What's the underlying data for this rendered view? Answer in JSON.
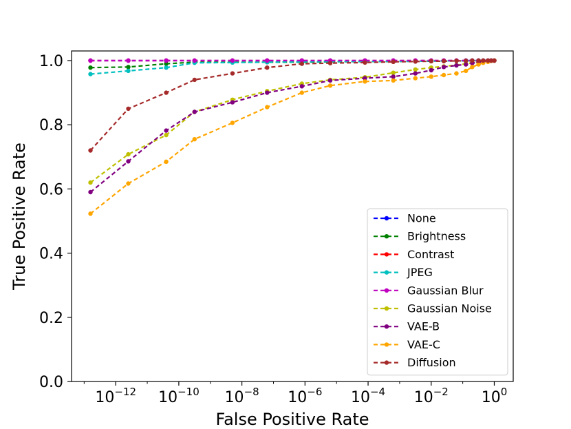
{
  "chart_data": {
    "type": "line",
    "title": "",
    "xlabel": "False Positive Rate",
    "ylabel": "True Positive Rate",
    "xscale": "log",
    "xlim_exp": [
      -13.4,
      0.6
    ],
    "ylim": [
      0.0,
      1.03
    ],
    "x_ticks": [
      {
        "base": "10",
        "exp": "−12",
        "value": -12
      },
      {
        "base": "10",
        "exp": "−10",
        "value": -10
      },
      {
        "base": "10",
        "exp": "−8",
        "value": -8
      },
      {
        "base": "10",
        "exp": "−6",
        "value": -6
      },
      {
        "base": "10",
        "exp": "−4",
        "value": -4
      },
      {
        "base": "10",
        "exp": "−2",
        "value": -2
      },
      {
        "base": "10",
        "exp": "0",
        "value": 0
      }
    ],
    "y_ticks": [
      "0.0",
      "0.2",
      "0.4",
      "0.6",
      "0.8",
      "1.0"
    ],
    "legend_position": "lower-right",
    "series": [
      {
        "name": "None",
        "color": "#0000ff",
        "x_exp": [
          -12.8,
          -11.6,
          -10.4,
          -9.5,
          -8.3,
          -7.2,
          -6.1,
          -5.2,
          -4.1,
          -3.2,
          -2.5,
          -2,
          -1.6,
          -1.2,
          -0.9,
          -0.7,
          -0.5,
          -0.35,
          -0.2,
          -0.1,
          0
        ],
        "y": [
          1.0,
          1.0,
          1.0,
          1.0,
          1.0,
          1.0,
          1.0,
          1.0,
          1.0,
          1.0,
          1.0,
          1.0,
          1.0,
          1.0,
          1.0,
          1.0,
          1.0,
          1.0,
          1.0,
          1.0,
          1.0
        ]
      },
      {
        "name": "Brightness",
        "color": "#008000",
        "x_exp": [
          -12.8,
          -11.6,
          -10.4,
          -9.5,
          -8.3,
          -7.2,
          -6.1,
          -5.2,
          -4.1,
          -3.2,
          -2.5,
          -2,
          -1.6,
          -1.2,
          -0.9,
          -0.7,
          -0.5,
          -0.35,
          -0.2,
          -0.1,
          0
        ],
        "y": [
          0.978,
          0.98,
          0.99,
          0.995,
          0.995,
          0.995,
          0.995,
          0.996,
          0.997,
          0.997,
          0.998,
          0.998,
          0.999,
          0.999,
          0.999,
          1.0,
          1.0,
          1.0,
          1.0,
          1.0,
          1.0
        ]
      },
      {
        "name": "Contrast",
        "color": "#ff0000",
        "x_exp": [
          -12.8,
          -11.6,
          -10.4,
          -9.5,
          -8.3,
          -7.2,
          -6.1,
          -5.2,
          -4.1,
          -3.2,
          -2.5,
          -2,
          -1.6,
          -1.2,
          -0.9,
          -0.7,
          -0.5,
          -0.35,
          -0.2,
          -0.1,
          0
        ],
        "y": [
          1.0,
          1.0,
          1.0,
          1.0,
          1.0,
          1.0,
          1.0,
          1.0,
          1.0,
          1.0,
          1.0,
          1.0,
          1.0,
          1.0,
          1.0,
          1.0,
          1.0,
          1.0,
          1.0,
          1.0,
          1.0
        ]
      },
      {
        "name": "JPEG",
        "color": "#00bfbf",
        "x_exp": [
          -12.8,
          -11.6,
          -10.4,
          -9.5,
          -8.3,
          -7.2,
          -6.1,
          -5.2,
          -4.1,
          -3.2,
          -2.5,
          -2,
          -1.6,
          -1.2,
          -0.9,
          -0.7,
          -0.5,
          -0.35,
          -0.2,
          -0.1,
          0
        ],
        "y": [
          0.958,
          0.968,
          0.978,
          0.993,
          0.994,
          0.995,
          0.996,
          0.997,
          0.997,
          0.998,
          0.998,
          0.999,
          0.999,
          0.999,
          1.0,
          1.0,
          1.0,
          1.0,
          1.0,
          1.0,
          1.0
        ]
      },
      {
        "name": "Gaussian Blur",
        "color": "#bf00bf",
        "x_exp": [
          -12.8,
          -11.6,
          -10.4,
          -9.5,
          -8.3,
          -7.2,
          -6.1,
          -5.2,
          -4.1,
          -3.2,
          -2.5,
          -2,
          -1.6,
          -1.2,
          -0.9,
          -0.7,
          -0.5,
          -0.35,
          -0.2,
          -0.1,
          0
        ],
        "y": [
          1.0,
          1.0,
          1.0,
          1.0,
          1.0,
          1.0,
          1.0,
          1.0,
          1.0,
          1.0,
          1.0,
          1.0,
          1.0,
          1.0,
          1.0,
          1.0,
          1.0,
          1.0,
          1.0,
          1.0,
          1.0
        ]
      },
      {
        "name": "Gaussian Noise",
        "color": "#bfbf00",
        "x_exp": [
          -12.8,
          -11.6,
          -10.4,
          -9.5,
          -8.3,
          -7.2,
          -6.1,
          -5.2,
          -4.1,
          -3.2,
          -2.5,
          -2,
          -1.6,
          -1.2,
          -0.9,
          -0.7,
          -0.5,
          -0.35,
          -0.2,
          -0.1,
          0
        ],
        "y": [
          0.62,
          0.708,
          0.768,
          0.84,
          0.878,
          0.905,
          0.928,
          0.94,
          0.948,
          0.962,
          0.972,
          0.978,
          0.982,
          0.986,
          0.99,
          0.993,
          0.995,
          0.997,
          0.998,
          0.999,
          1.0
        ]
      },
      {
        "name": "VAE-B",
        "color": "#800080",
        "x_exp": [
          -12.8,
          -11.6,
          -10.4,
          -9.5,
          -8.3,
          -7.2,
          -6.1,
          -5.2,
          -4.1,
          -3.2,
          -2.5,
          -2,
          -1.6,
          -1.2,
          -0.9,
          -0.7,
          -0.5,
          -0.35,
          -0.2,
          -0.1,
          0
        ],
        "y": [
          0.59,
          0.686,
          0.782,
          0.84,
          0.87,
          0.9,
          0.92,
          0.938,
          0.945,
          0.95,
          0.96,
          0.97,
          0.98,
          0.985,
          0.988,
          0.992,
          0.995,
          0.997,
          0.998,
          0.999,
          1.0
        ]
      },
      {
        "name": "VAE-C",
        "color": "#ffa500",
        "x_exp": [
          -12.8,
          -11.6,
          -10.4,
          -9.5,
          -8.3,
          -7.2,
          -6.1,
          -5.2,
          -4.1,
          -3.2,
          -2.5,
          -2,
          -1.6,
          -1.2,
          -0.9,
          -0.7,
          -0.5,
          -0.35,
          -0.2,
          -0.1,
          0
        ],
        "y": [
          0.523,
          0.617,
          0.685,
          0.755,
          0.806,
          0.855,
          0.9,
          0.922,
          0.935,
          0.938,
          0.945,
          0.95,
          0.955,
          0.96,
          0.968,
          0.98,
          0.988,
          0.993,
          0.996,
          0.999,
          1.0
        ]
      },
      {
        "name": "Diffusion",
        "color": "#a52a2a",
        "x_exp": [
          -12.8,
          -11.6,
          -10.4,
          -9.5,
          -8.3,
          -7.2,
          -6.1,
          -5.2,
          -4.1,
          -3.2,
          -2.5,
          -2,
          -1.6,
          -1.2,
          -0.9,
          -0.7,
          -0.5,
          -0.35,
          -0.2,
          -0.1,
          0
        ],
        "y": [
          0.72,
          0.85,
          0.9,
          0.94,
          0.96,
          0.978,
          0.99,
          0.992,
          0.994,
          0.996,
          0.997,
          0.998,
          0.998,
          0.999,
          0.999,
          1.0,
          1.0,
          1.0,
          1.0,
          1.0,
          1.0
        ]
      }
    ]
  }
}
